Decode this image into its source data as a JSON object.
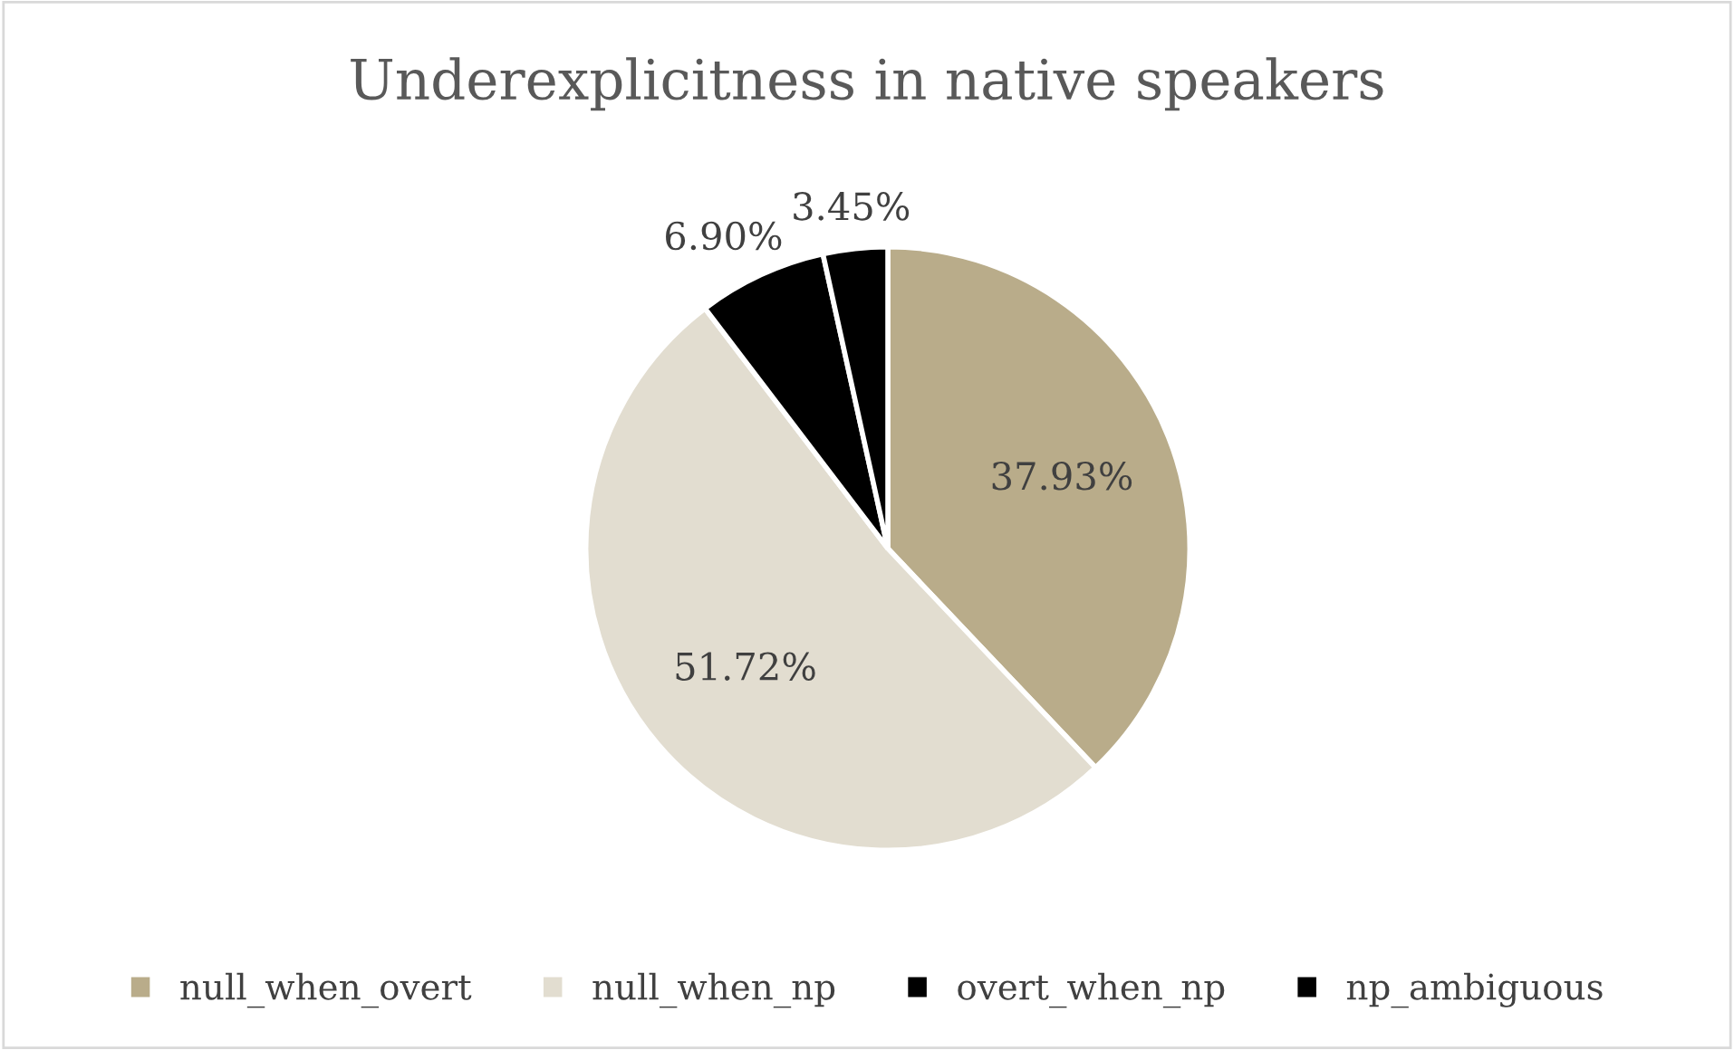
{
  "chart_data": {
    "type": "pie",
    "title": "Underexplicitness in native speakers",
    "categories": [
      "null_when_overt",
      "null_when_np",
      "overt_when_np",
      "np_ambiguous"
    ],
    "values": [
      37.93,
      51.72,
      6.9,
      3.45
    ],
    "value_labels": [
      "37.93%",
      "51.72%",
      "6.90%",
      "3.45%"
    ],
    "colors": [
      "#b9ac8a",
      "#e2ddd0",
      "#000000",
      "#000000"
    ],
    "legend": "bottom"
  }
}
